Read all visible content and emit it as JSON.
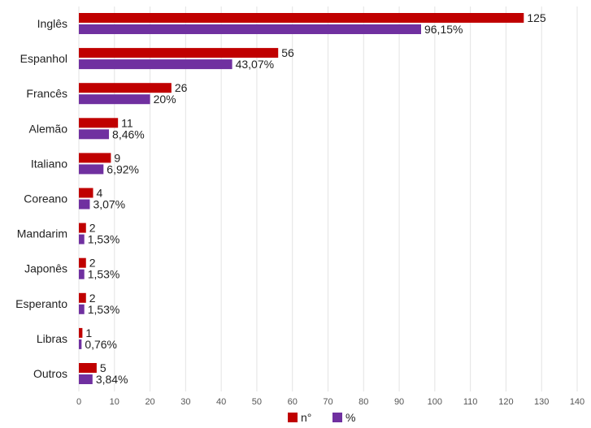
{
  "chart_data": {
    "type": "bar",
    "orientation": "horizontal",
    "categories": [
      "Inglês",
      "Espanhol",
      "Francês",
      "Alemão",
      "Italiano",
      "Coreano",
      "Mandarim",
      "Japonês",
      "Esperanto",
      "Libras",
      "Outros"
    ],
    "series": [
      {
        "name": "n°",
        "color": "#c00000",
        "values": [
          125,
          56,
          26,
          11,
          9,
          4,
          2,
          2,
          2,
          1,
          5
        ],
        "labels": [
          "125",
          "56",
          "26",
          "11",
          "9",
          "4",
          "2",
          "2",
          "2",
          "1",
          "5"
        ]
      },
      {
        "name": "%",
        "color": "#7030a0",
        "values": [
          96.15,
          43.07,
          20,
          8.46,
          6.92,
          3.07,
          1.53,
          1.53,
          1.53,
          0.76,
          3.84
        ],
        "labels": [
          "96,15%",
          "43,07%",
          "20%",
          "8,46%",
          "6,92%",
          "3,07%",
          "1,53%",
          "1,53%",
          "1,53%",
          "0,76%",
          "3,84%"
        ]
      }
    ],
    "xlim": [
      0,
      140
    ],
    "xticks": [
      0,
      10,
      20,
      30,
      40,
      50,
      60,
      70,
      80,
      90,
      100,
      110,
      120,
      130,
      140
    ],
    "grid": true,
    "legend_position": "bottom"
  }
}
